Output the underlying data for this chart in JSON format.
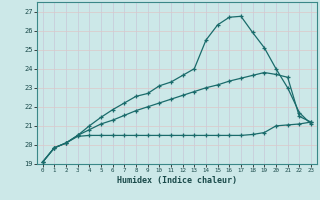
{
  "title": "",
  "xlabel": "Humidex (Indice chaleur)",
  "xlim": [
    -0.5,
    23.5
  ],
  "ylim": [
    19,
    27.5
  ],
  "xticks": [
    0,
    1,
    2,
    3,
    4,
    5,
    6,
    7,
    8,
    9,
    10,
    11,
    12,
    13,
    14,
    15,
    16,
    17,
    18,
    19,
    20,
    21,
    22,
    23
  ],
  "yticks": [
    19,
    20,
    21,
    22,
    23,
    24,
    25,
    26,
    27
  ],
  "bg_color": "#cce8e8",
  "vgrid_color": "#c8c8d8",
  "hgrid_color": "#ddc8c8",
  "line_color": "#1a6b6b",
  "line1_x": [
    0,
    1,
    2,
    3,
    4,
    5,
    6,
    7,
    8,
    9,
    10,
    11,
    12,
    13,
    14,
    15,
    16,
    17,
    18,
    19,
    20,
    21,
    22,
    23
  ],
  "line1_y": [
    19.1,
    19.85,
    20.1,
    20.5,
    21.0,
    21.45,
    21.85,
    22.2,
    22.55,
    22.7,
    23.1,
    23.3,
    23.65,
    24.0,
    25.5,
    26.3,
    26.7,
    26.75,
    25.9,
    25.1,
    24.0,
    23.0,
    21.7,
    21.1
  ],
  "line2_x": [
    0,
    1,
    2,
    3,
    4,
    5,
    6,
    7,
    8,
    9,
    10,
    11,
    12,
    13,
    14,
    15,
    16,
    17,
    18,
    19,
    20,
    21,
    22,
    23
  ],
  "line2_y": [
    19.1,
    19.85,
    20.1,
    20.5,
    20.8,
    21.1,
    21.3,
    21.55,
    21.8,
    22.0,
    22.2,
    22.4,
    22.6,
    22.8,
    23.0,
    23.15,
    23.35,
    23.5,
    23.65,
    23.8,
    23.7,
    23.55,
    21.5,
    21.2
  ],
  "line3_x": [
    0,
    1,
    2,
    3,
    4,
    5,
    6,
    7,
    8,
    9,
    10,
    11,
    12,
    13,
    14,
    15,
    16,
    17,
    18,
    19,
    20,
    21,
    22,
    23
  ],
  "line3_y": [
    19.1,
    19.85,
    20.1,
    20.45,
    20.5,
    20.5,
    20.5,
    20.5,
    20.5,
    20.5,
    20.5,
    20.5,
    20.5,
    20.5,
    20.5,
    20.5,
    20.5,
    20.5,
    20.55,
    20.65,
    21.0,
    21.05,
    21.1,
    21.2
  ]
}
